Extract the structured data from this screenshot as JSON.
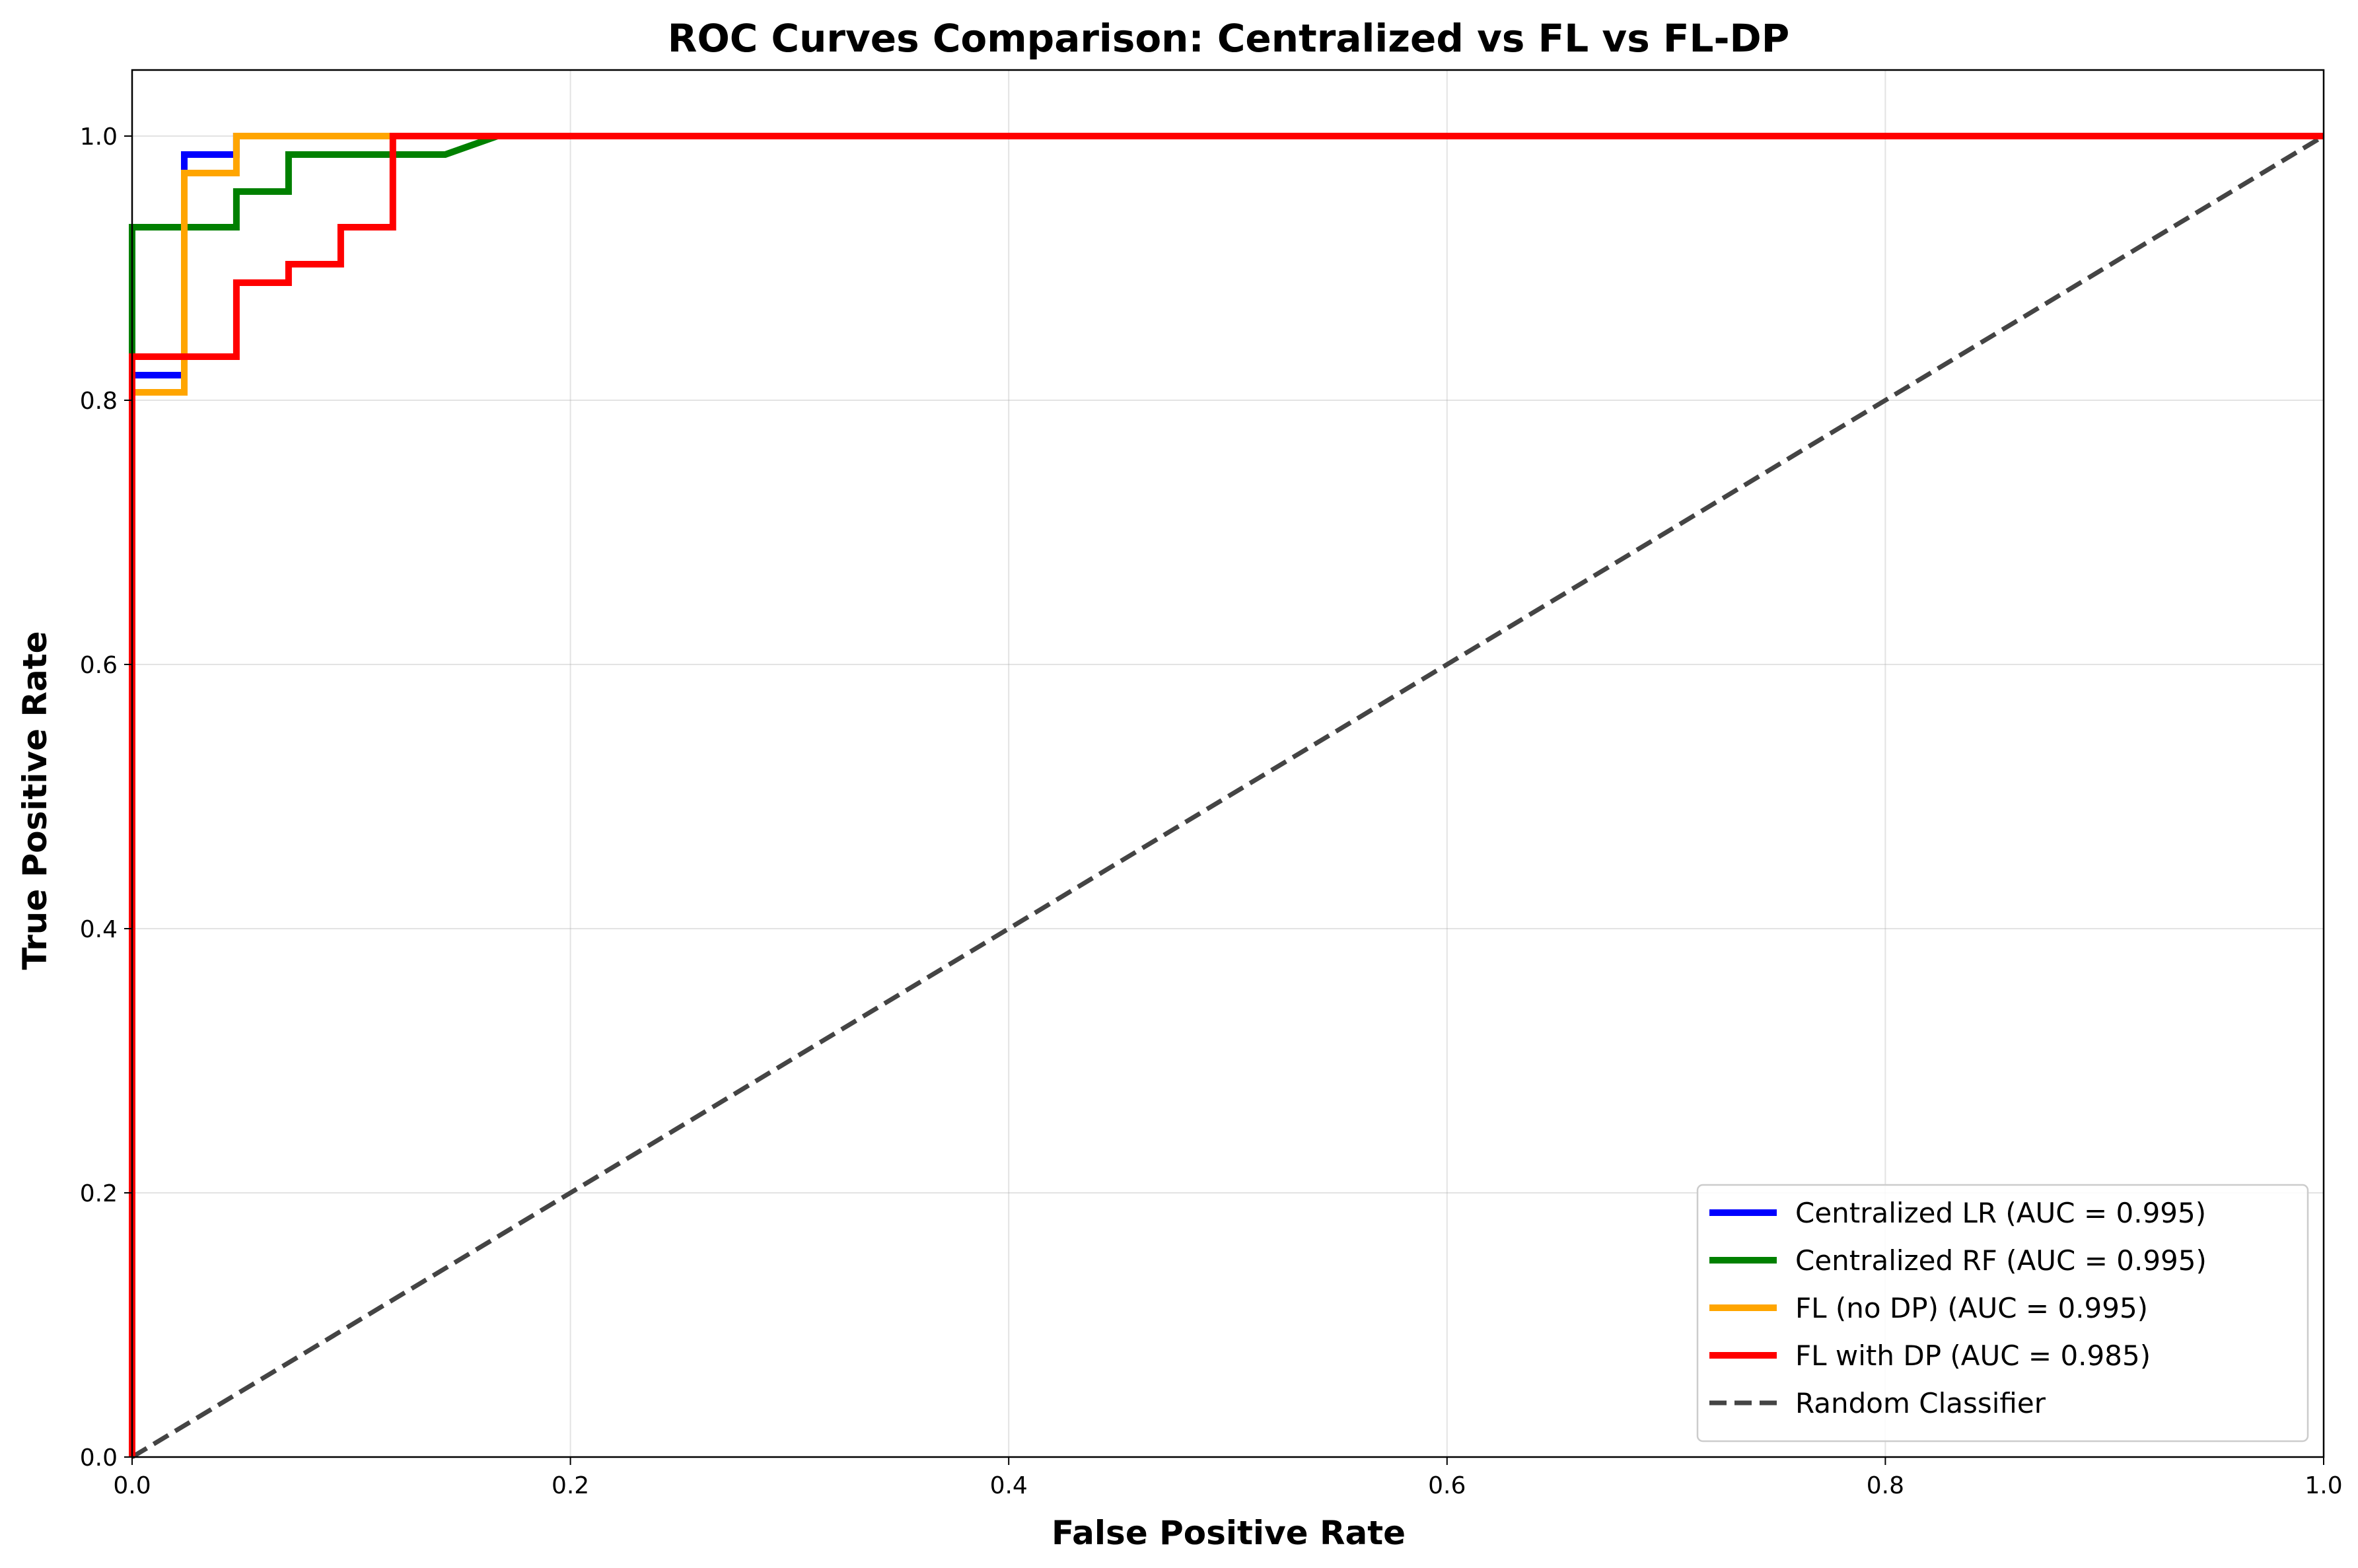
{
  "chart_data": {
    "type": "line",
    "title": "ROC Curves Comparison: Centralized vs FL vs FL-DP",
    "xlabel": "False Positive Rate",
    "ylabel": "True Positive Rate",
    "xlim": [
      0,
      1
    ],
    "ylim": [
      0,
      1.05
    ],
    "xticks": [
      0.0,
      0.2,
      0.4,
      0.6,
      0.8,
      1.0
    ],
    "yticks": [
      0.0,
      0.2,
      0.4,
      0.6,
      0.8,
      1.0
    ],
    "xtick_labels": [
      "0.0",
      "0.2",
      "0.4",
      "0.6",
      "0.8",
      "1.0"
    ],
    "ytick_labels": [
      "0.0",
      "0.2",
      "0.4",
      "0.6",
      "0.8",
      "1.0"
    ],
    "grid": true,
    "legend_position": "bottom-right",
    "series": [
      {
        "name": "Centralized LR (AUC = 0.995)",
        "color": "#0000ff",
        "style": "solid",
        "x": [
          0.0,
          0.0,
          0.0238,
          0.0238,
          0.0476,
          0.0476,
          1.0
        ],
        "y": [
          0.0,
          0.819,
          0.819,
          0.986,
          0.986,
          1.0,
          1.0
        ]
      },
      {
        "name": "Centralized RF (AUC = 0.995)",
        "color": "#008000",
        "style": "solid",
        "x": [
          0.0,
          0.0,
          0.0476,
          0.0476,
          0.0714,
          0.0714,
          0.1429,
          0.1667,
          1.0
        ],
        "y": [
          0.0,
          0.931,
          0.931,
          0.958,
          0.958,
          0.986,
          0.986,
          1.0,
          1.0
        ]
      },
      {
        "name": "FL (no DP) (AUC = 0.995)",
        "color": "#ffa500",
        "style": "solid",
        "x": [
          0.0,
          0.0,
          0.0238,
          0.0238,
          0.0476,
          0.0476,
          1.0
        ],
        "y": [
          0.0,
          0.806,
          0.806,
          0.972,
          0.972,
          1.0,
          1.0
        ]
      },
      {
        "name": "FL with DP (AUC = 0.985)",
        "color": "#ff0000",
        "style": "solid",
        "x": [
          0.0,
          0.0,
          0.0476,
          0.0476,
          0.0714,
          0.0714,
          0.0952,
          0.0952,
          0.119,
          0.119,
          1.0
        ],
        "y": [
          0.0,
          0.833,
          0.833,
          0.889,
          0.889,
          0.903,
          0.903,
          0.931,
          0.931,
          1.0,
          1.0
        ]
      },
      {
        "name": "Random Classifier",
        "color": "#444444",
        "style": "dashed",
        "x": [
          0.0,
          1.0
        ],
        "y": [
          0.0,
          1.0
        ]
      }
    ]
  }
}
